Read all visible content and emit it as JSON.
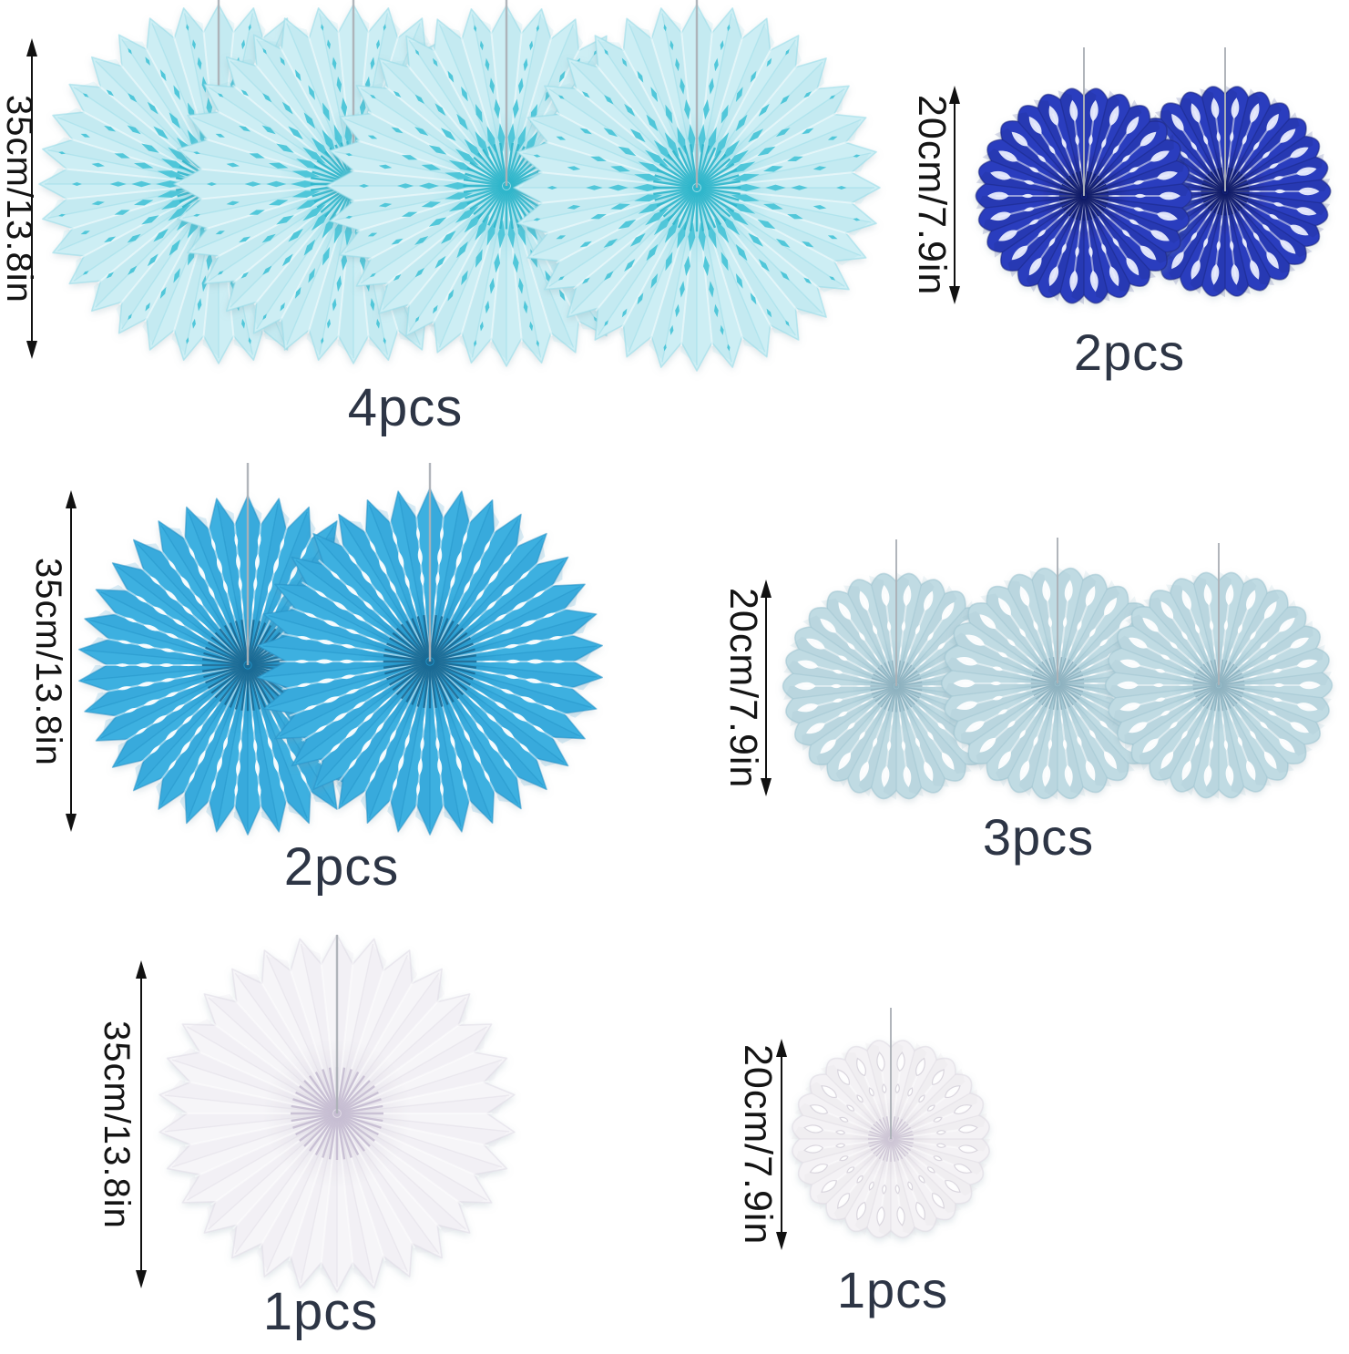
{
  "palette": {
    "background": "#ffffff",
    "annotation_text": "#141414",
    "count_text": "#2d3545",
    "arrow": "#111111",
    "string": "#adb2b8"
  },
  "groups": [
    {
      "id": "cyan-large",
      "dimension_label": "35cm/13.8in",
      "count_label": "4pcs",
      "pieces": 4,
      "fan": {
        "size": "35cm",
        "body": "#cdeef4",
        "shade": "#96dbe7",
        "hole": "#47c3d7",
        "center": "#2fb6cb"
      }
    },
    {
      "id": "navy-small",
      "dimension_label": "20cm/7.9in",
      "count_label": "2pcs",
      "pieces": 2,
      "fan": {
        "size": "20cm",
        "body": "#2c3cbe",
        "shade": "#18257f",
        "hole": "#eef1ff",
        "center": "#0f1a66"
      }
    },
    {
      "id": "turquoise-large",
      "dimension_label": "35cm/13.8in",
      "count_label": "2pcs",
      "pieces": 2,
      "fan": {
        "size": "35cm",
        "body": "#3cb0e0",
        "shade": "#2292c6",
        "hole": "#ffffff",
        "center": "#1a6a94"
      }
    },
    {
      "id": "lightblue-small",
      "dimension_label": "20cm/7.9in",
      "count_label": "3pcs",
      "pieces": 3,
      "fan": {
        "size": "20cm",
        "body": "#c0dbe3",
        "shade": "#9cc2cf",
        "hole": "#ffffff",
        "center": "#8eb2c0"
      }
    },
    {
      "id": "white-large",
      "dimension_label": "35cm/13.8in",
      "count_label": "1pcs",
      "pieces": 1,
      "fan": {
        "size": "35cm",
        "body": "#f6f5f8",
        "shade": "#dfdbe5",
        "hole": "#ffffff",
        "center": "#c6bdd2"
      }
    },
    {
      "id": "white-small",
      "dimension_label": "20cm/7.9in",
      "count_label": "1pcs",
      "pieces": 1,
      "fan": {
        "size": "20cm",
        "body": "#f4f2f5",
        "shade": "#ddd9e1",
        "hole": "#ffffff",
        "center": "#cdc5d5"
      }
    }
  ]
}
